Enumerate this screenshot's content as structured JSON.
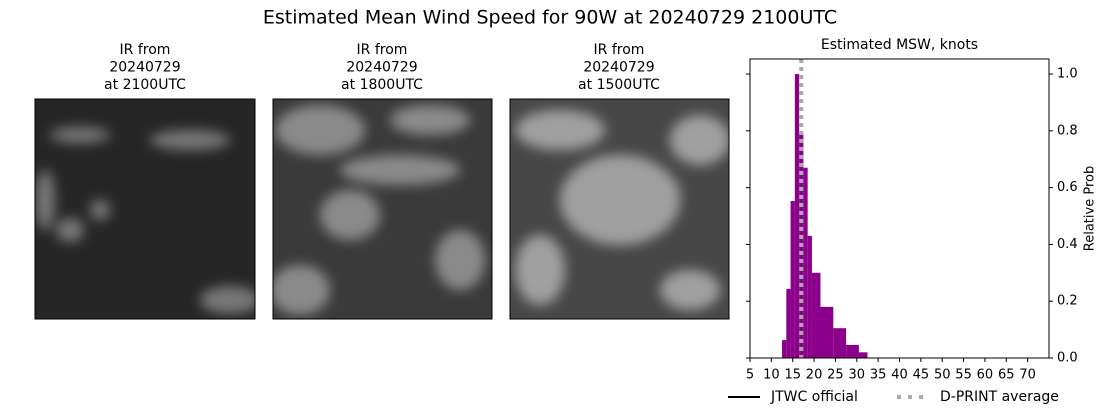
{
  "title": "Estimated Mean Wind Speed for 90W at 20240729 2100UTC",
  "panels": [
    {
      "lines": [
        "IR from",
        "20240729",
        "at 2100UTC"
      ]
    },
    {
      "lines": [
        "IR from",
        "20240729",
        "at 1800UTC"
      ]
    },
    {
      "lines": [
        "IR from",
        "20240729",
        "at 1500UTC"
      ]
    }
  ],
  "chart_data": {
    "type": "histogram",
    "title": "Estimated MSW, knots",
    "y_label": "Relative Prob",
    "bins": [
      12.5,
      13.5,
      14.5,
      15.5,
      16.5,
      17.5,
      18.5,
      19.5,
      21.5,
      24.5,
      27.5,
      30.5,
      32.5
    ],
    "values": [
      0.063,
      0.243,
      0.553,
      1.0,
      0.79,
      0.67,
      0.43,
      0.3,
      0.18,
      0.105,
      0.046,
      0.02
    ],
    "color": "#8b008b",
    "xlim": [
      5,
      75
    ],
    "xticks": [
      5,
      10,
      15,
      20,
      25,
      30,
      35,
      40,
      45,
      50,
      55,
      60,
      65,
      70
    ],
    "ylim": [
      0,
      1.053
    ],
    "yticks": [
      {
        "value": 0,
        "label": "0.0"
      },
      0.2,
      0.4,
      0.6,
      0.8,
      {
        "value": 1,
        "label": "1.0"
      }
    ],
    "reference_lines": [
      {
        "name": "JTWC official",
        "color": "#000000",
        "style": "solid"
      },
      {
        "name": "D-PRINT average",
        "value": 17,
        "color": "#aaaaaa",
        "style": "dotted"
      }
    ]
  }
}
